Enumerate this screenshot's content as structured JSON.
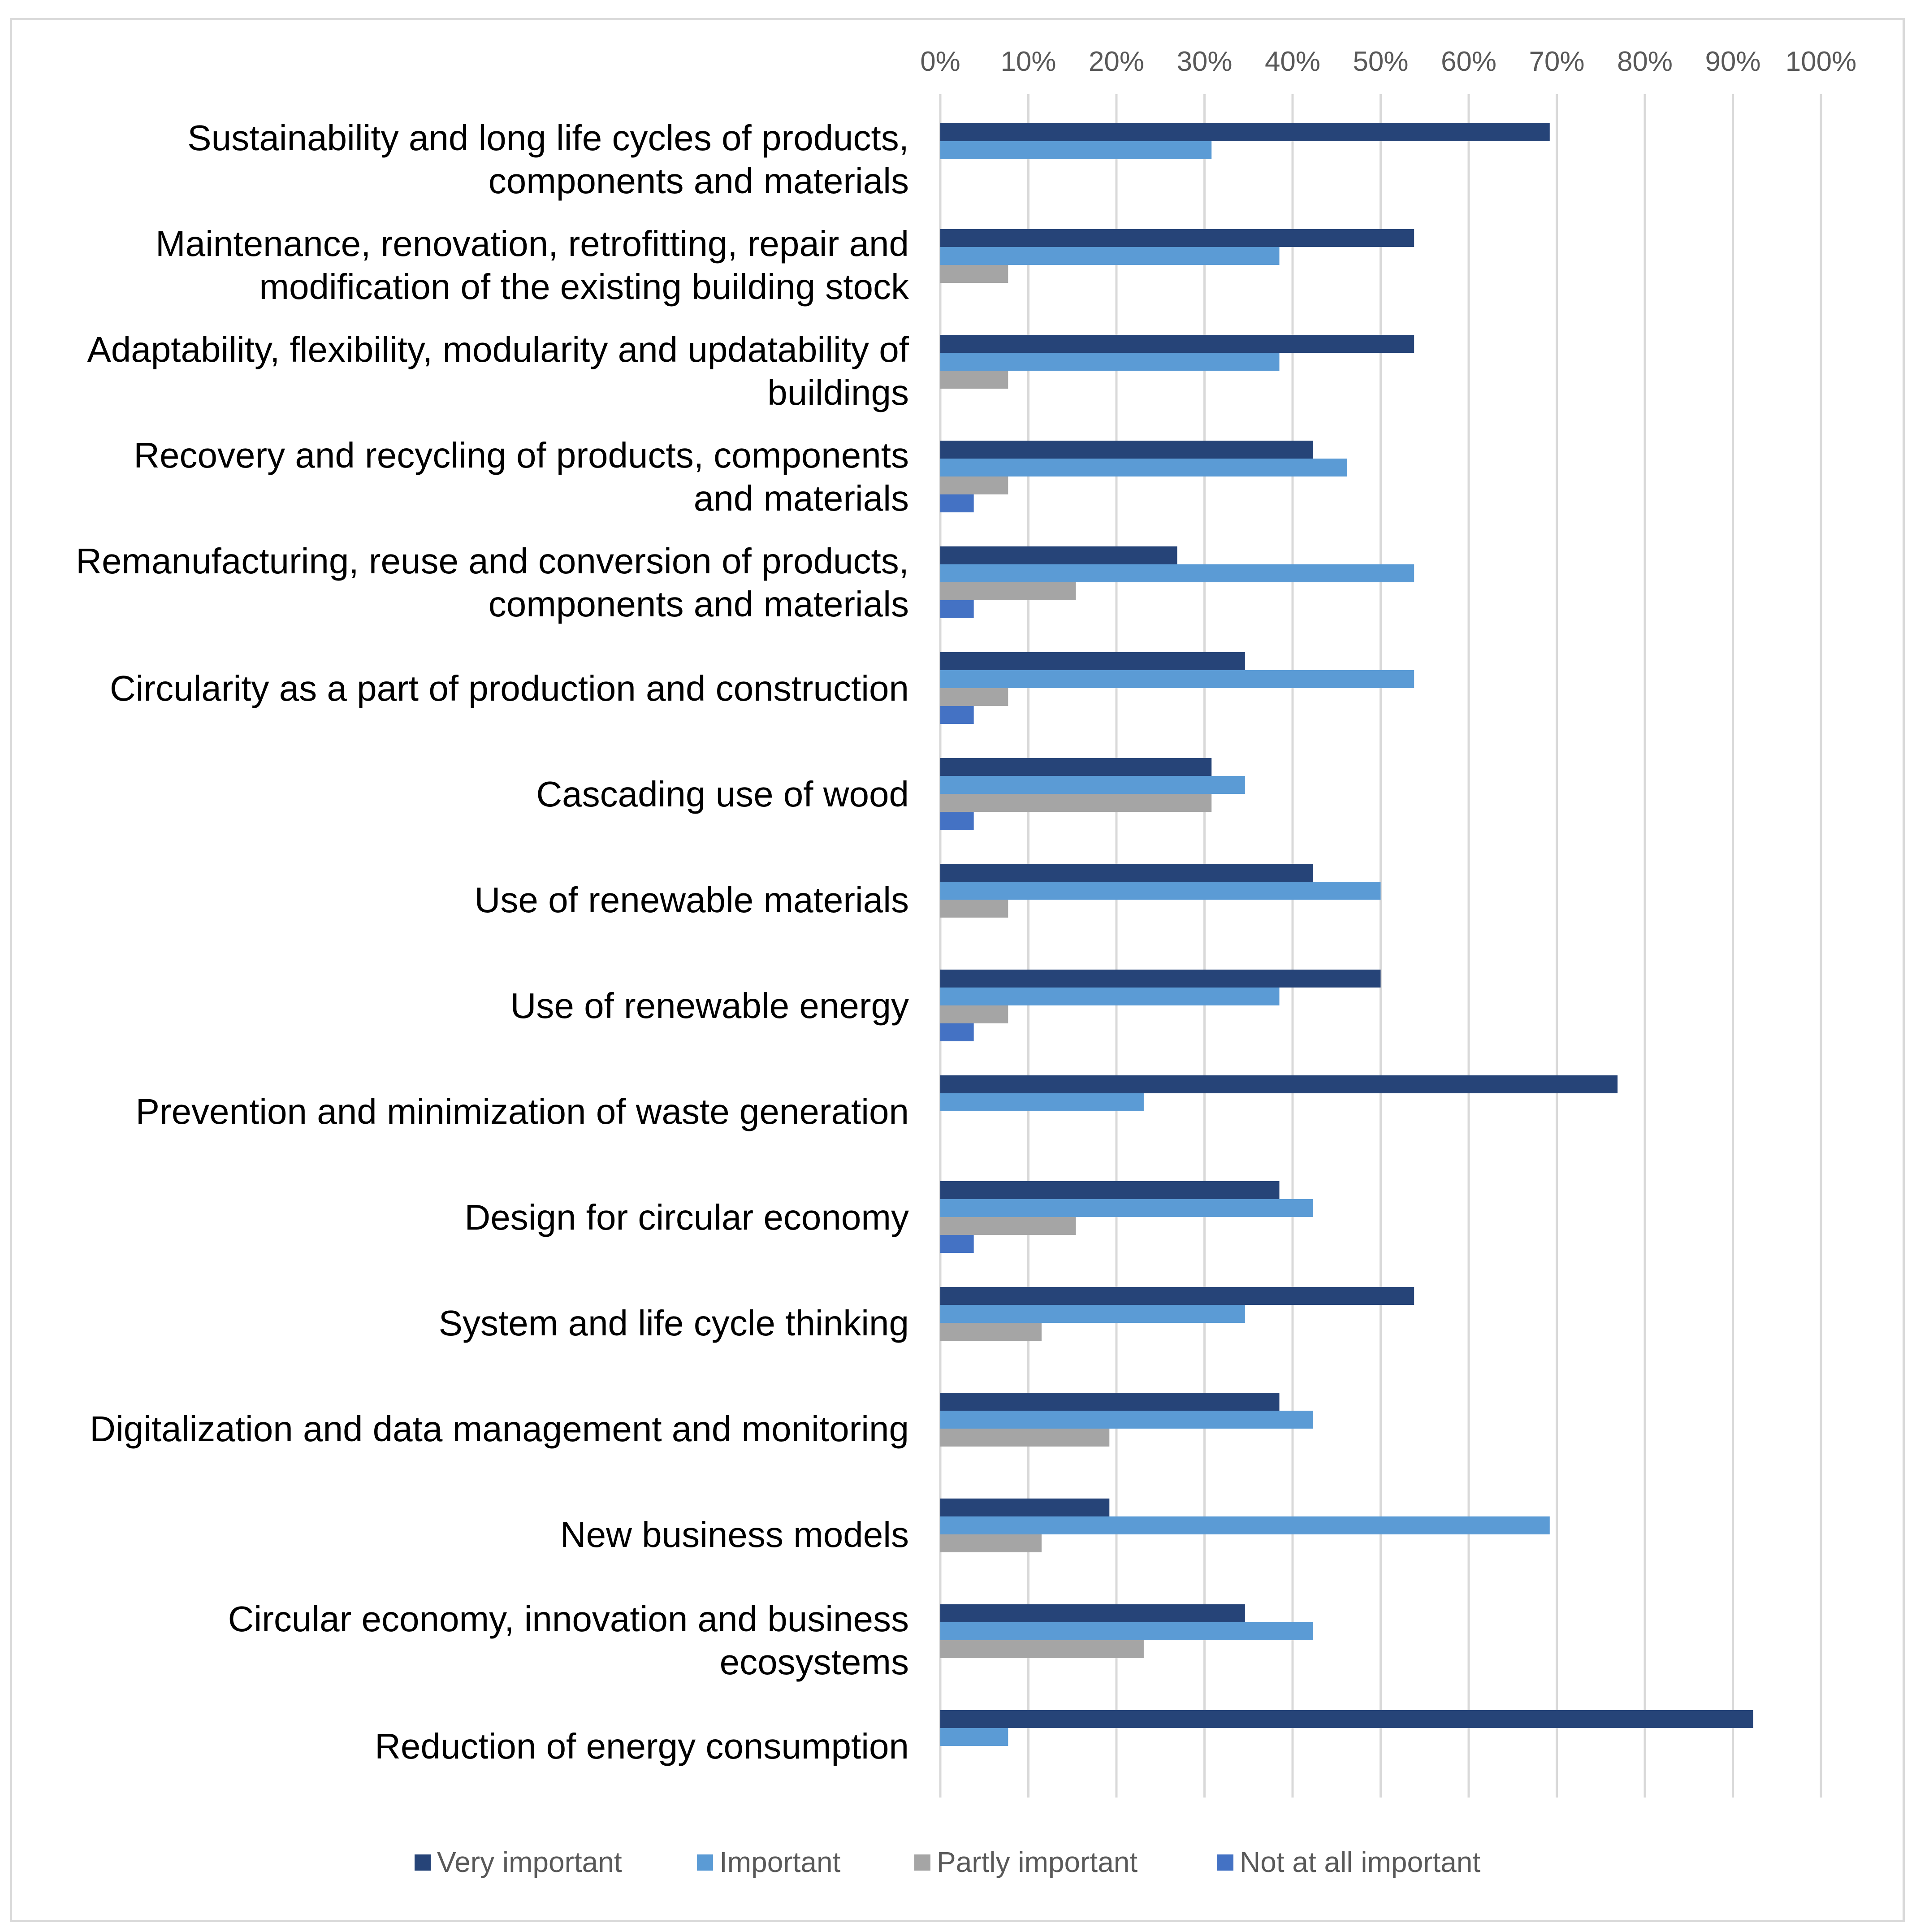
{
  "chart_data": {
    "type": "bar",
    "orientation": "horizontal",
    "title": "",
    "xlabel": "",
    "ylabel": "",
    "xlim": [
      0,
      100
    ],
    "x_ticks": [
      "0%",
      "10%",
      "20%",
      "30%",
      "40%",
      "50%",
      "60%",
      "70%",
      "80%",
      "90%",
      "100%"
    ],
    "grid": true,
    "legend_position": "bottom",
    "categories": [
      [
        "Sustainability and long life cycles of products,",
        "components and materials"
      ],
      [
        "Maintenance, renovation, retrofitting, repair and",
        "modification of the existing building stock"
      ],
      [
        "Adaptability, flexibility, modularity and updatability of",
        "buildings"
      ],
      [
        "Recovery and recycling of products, components",
        "and materials"
      ],
      [
        "Remanufacturing, reuse and conversion of products,",
        "components and materials"
      ],
      [
        "Circularity as a part of production and construction"
      ],
      [
        "Cascading use of wood"
      ],
      [
        "Use of renewable materials"
      ],
      [
        "Use of renewable energy"
      ],
      [
        "Prevention and minimization of waste generation"
      ],
      [
        "Design for circular economy"
      ],
      [
        "System and life cycle thinking"
      ],
      [
        "Digitalization and data management and monitoring"
      ],
      [
        "New business models"
      ],
      [
        "Circular economy, innovation and business",
        "ecosystems"
      ],
      [
        "Reduction of energy consumption"
      ]
    ],
    "series": [
      {
        "name": "Very important",
        "color": "#264478",
        "values": [
          69.2,
          53.8,
          53.8,
          42.3,
          26.9,
          34.6,
          30.8,
          42.3,
          50.0,
          76.9,
          38.5,
          53.8,
          38.5,
          19.2,
          34.6,
          92.3
        ]
      },
      {
        "name": "Important",
        "color": "#5b9bd5",
        "values": [
          30.8,
          38.5,
          38.5,
          46.2,
          53.8,
          53.8,
          34.6,
          50.0,
          38.5,
          23.1,
          42.3,
          34.6,
          42.3,
          69.2,
          42.3,
          7.7
        ]
      },
      {
        "name": "Partly important",
        "color": "#a5a5a5",
        "values": [
          0,
          7.7,
          7.7,
          7.7,
          15.4,
          7.7,
          30.8,
          7.7,
          7.7,
          0,
          15.4,
          11.5,
          19.2,
          11.5,
          23.1,
          0
        ]
      },
      {
        "name": "Not at all important",
        "color": "#4472c4",
        "values": [
          0,
          0,
          0,
          3.8,
          3.8,
          3.8,
          3.8,
          0,
          3.8,
          0,
          3.8,
          0,
          0,
          0,
          0,
          0
        ]
      }
    ]
  }
}
